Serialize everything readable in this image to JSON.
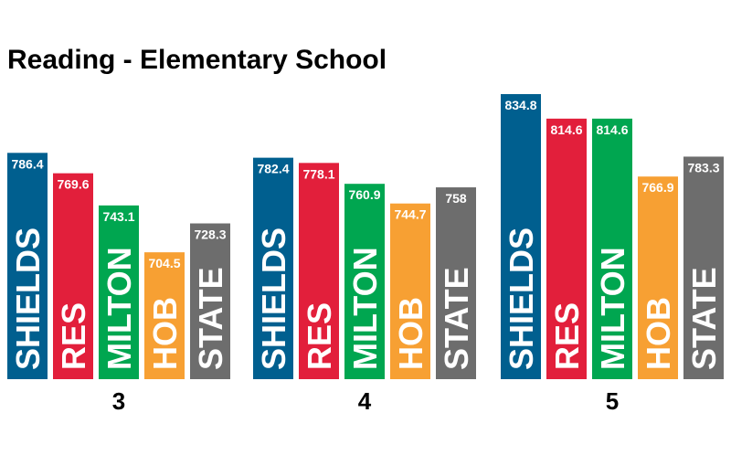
{
  "chart_data": {
    "type": "bar",
    "title": "Reading - Elementary School",
    "xlabel": "",
    "ylabel": "",
    "categories": [
      "3",
      "4",
      "5"
    ],
    "series": [
      {
        "name": "SHIELDS",
        "color": "#005f8f",
        "values": [
          786.4,
          782.4,
          834.8
        ]
      },
      {
        "name": "RES",
        "color": "#e21f3b",
        "values": [
          769.6,
          778.1,
          814.6
        ]
      },
      {
        "name": "MILTON",
        "color": "#00a650",
        "values": [
          743.1,
          760.9,
          814.6
        ]
      },
      {
        "name": "HOB",
        "color": "#f7a033",
        "values": [
          704.5,
          744.7,
          766.9
        ]
      },
      {
        "name": "STATE",
        "color": "#6d6d6d",
        "values": [
          728.3,
          758,
          783.3
        ]
      }
    ],
    "value_labels": [
      [
        "786.4",
        "782.4",
        "834.8"
      ],
      [
        "769.6",
        "778.1",
        "814.6"
      ],
      [
        "743.1",
        "760.9",
        "814.6"
      ],
      [
        "704.5",
        "744.7",
        "766.9"
      ],
      [
        "728.3",
        "758",
        "783.3"
      ]
    ],
    "ylim": [
      0,
      834.8
    ],
    "grid": false,
    "legend": "none"
  }
}
